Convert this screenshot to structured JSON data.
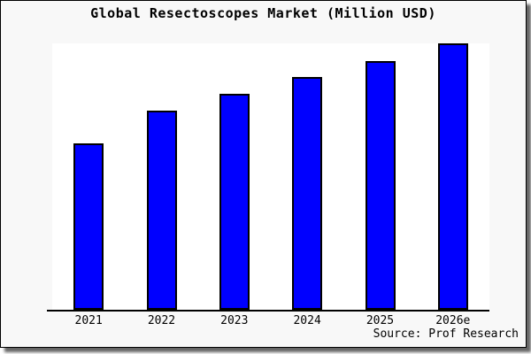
{
  "title": "Global Resectoscopes Market (Million USD)",
  "source_note": "Source: Prof Research",
  "colors": {
    "bar_fill": "#0000ff",
    "bar_edge": "#000000",
    "figure_background": "#f8f8f8",
    "plot_background": "#ffffff",
    "axis_line": "#000000",
    "text": "#000000"
  },
  "chart_data": {
    "type": "bar",
    "title": "Global Resectoscopes Market (Million USD)",
    "categories": [
      "2021",
      "2022",
      "2023",
      "2024",
      "2025",
      "2026e"
    ],
    "values": [
      62.5,
      74.8,
      81.1,
      87.4,
      93.4,
      100
    ],
    "values_note": "relative heights estimated from bars; no y-axis scale shown",
    "xlabel": "",
    "ylabel": "",
    "ylim": [
      0,
      100
    ],
    "y_axis_visible": false,
    "gridlines": false,
    "legend": false,
    "bar_color": "#0000ff",
    "bar_edge_color": "#000000",
    "source": "Source: Prof Research"
  }
}
